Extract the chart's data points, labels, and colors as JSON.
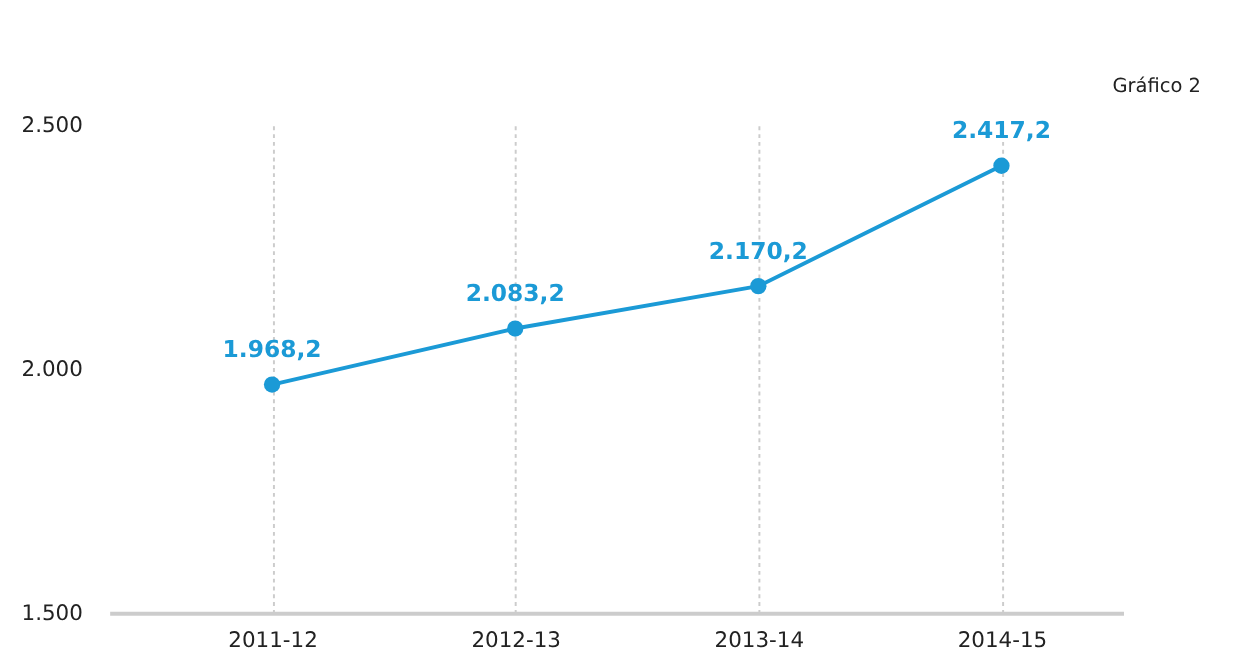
{
  "chart_data": {
    "type": "line",
    "categories": [
      "2011-12",
      "2012-13",
      "2013-14",
      "2014-15"
    ],
    "series": [
      {
        "color": "#1b9ad6",
        "values": [
          1968.2,
          2083.2,
          2170.2,
          2417.2
        ],
        "value_labels": [
          "1.968,2",
          "2.083,2",
          "2.170,2",
          "2.417,2"
        ]
      }
    ],
    "ylim": [
      1500,
      2500
    ],
    "yticks": [
      {
        "value": 1500,
        "label": "1.500"
      },
      {
        "value": 2000,
        "label": "2.000"
      },
      {
        "value": 2500,
        "label": "2.500"
      }
    ],
    "grid": "x",
    "marker": "circle",
    "line_style": "solid",
    "annotations": [
      "Gráfico 2"
    ]
  }
}
